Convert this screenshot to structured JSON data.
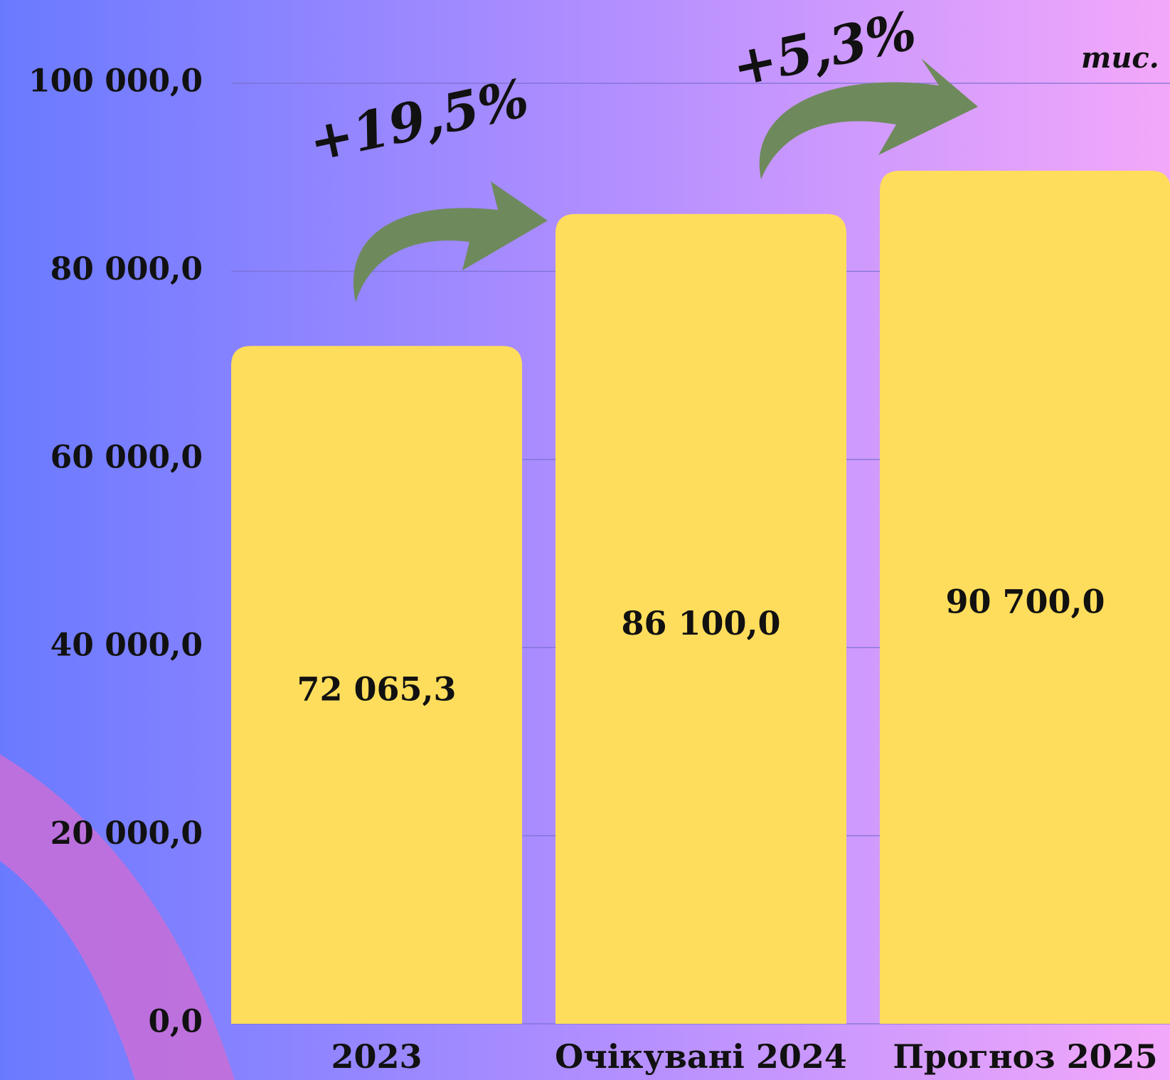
{
  "chart_data": {
    "type": "bar",
    "unit": "тис.",
    "annotations": [
      "+19,5%",
      "+5,3%"
    ],
    "categories": [
      "2023",
      "Очікувані 2024",
      "Прогноз 2025"
    ],
    "values": [
      72065.3,
      86100,
      90700
    ],
    "value_labels": [
      "72 065,3",
      "86 100,0",
      "90 700,0"
    ],
    "color": "#ffdd5c",
    "ylim": [
      0,
      100000
    ],
    "yticks": [
      {
        "value": 0,
        "label": "0,0"
      },
      {
        "value": 20000,
        "label": "20 000,0"
      },
      {
        "value": 40000,
        "label": "40 000,0"
      },
      {
        "value": 60000,
        "label": "60 000,0"
      },
      {
        "value": 80000,
        "label": "80 000,0"
      },
      {
        "value": 100000,
        "label": "100 000,0"
      }
    ],
    "grid": true
  }
}
